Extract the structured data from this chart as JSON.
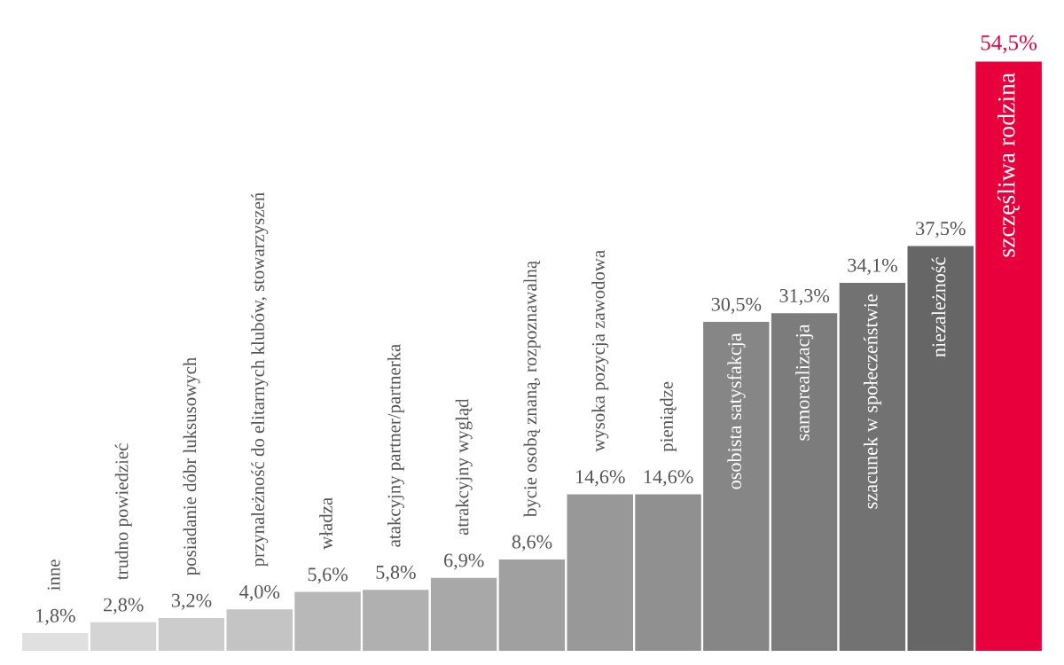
{
  "chart_data": {
    "type": "bar",
    "categories": [
      "inne",
      "trudno powiedzieć",
      "posiadanie dóbr luksusowych",
      "przynależność do elitarnych klubów, stowarzyszeń",
      "władza",
      "atakcyjny partner/partnerka",
      "atrakcyjny wygląd",
      "bycie osobą znaną, rozpoznawalną",
      "wysoka pozycja zawodowa",
      "pieniądze",
      "osobista satysfakcja",
      "samorealizacja",
      "szacunek w społeczeństwie",
      "niezależność",
      "szczęśliwa rodzina"
    ],
    "values": [
      1.8,
      2.8,
      3.2,
      4.0,
      5.6,
      5.8,
      6.9,
      8.6,
      14.6,
      14.6,
      30.5,
      31.3,
      34.1,
      37.5,
      54.5
    ],
    "value_labels": [
      "1,8%",
      "2,8%",
      "3,2%",
      "4,0%",
      "5,6%",
      "5,8%",
      "6,9%",
      "8,6%",
      "14,6%",
      "14,6%",
      "30,5%",
      "31,3%",
      "34,1%",
      "37,5%",
      "54,5%"
    ],
    "colors": [
      "#e0e0e0",
      "#d4d4d4",
      "#cccccc",
      "#c4c4c4",
      "#b8b8b8",
      "#b0b0b0",
      "#a8a8a8",
      "#a0a0a0",
      "#989898",
      "#909090",
      "#868686",
      "#7c7c7c",
      "#727272",
      "#666666",
      "#e8003d"
    ],
    "legend": false
  }
}
